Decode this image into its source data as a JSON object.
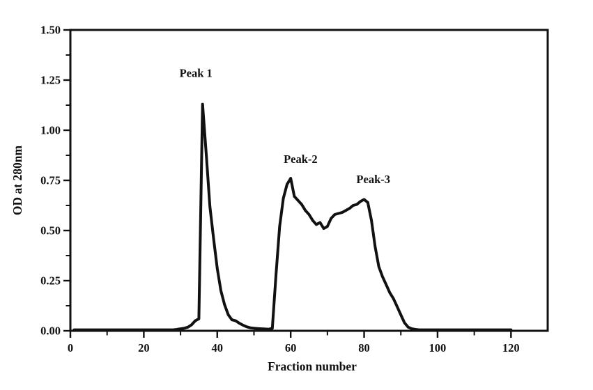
{
  "figure": {
    "background_color": "#ffffff",
    "line_color": "#111111",
    "frame_color": "#111111",
    "text_color": "#111111"
  },
  "chart_data": {
    "type": "line",
    "title": "",
    "xlabel": "Fraction number",
    "ylabel": "OD at 280nm",
    "xlim": [
      0,
      130
    ],
    "ylim": [
      0,
      1.5
    ],
    "grid": false,
    "legend": "none",
    "frame": "full-box",
    "tick_direction": "out",
    "x_tick_values": [
      0,
      20,
      40,
      60,
      80,
      100,
      120
    ],
    "x_tick_labels": [
      "0",
      "20",
      "40",
      "60",
      "80",
      "100",
      "120"
    ],
    "x_minor_ticks": [
      10,
      30,
      50,
      70,
      90,
      110
    ],
    "y_tick_values": [
      0,
      0.25,
      0.5,
      0.75,
      1.0,
      1.25,
      1.5
    ],
    "y_tick_labels": [
      "0.00",
      "0.25",
      "0.50",
      "0.75",
      "1.00",
      "1.25",
      "1.50"
    ],
    "y_minor_ticks": [
      0.125,
      0.375,
      0.625,
      0.875,
      1.125,
      1.375
    ],
    "annotations": [
      {
        "text": "Peak 1",
        "x": 34.2,
        "y": 1.285
      },
      {
        "text": "Peak-2",
        "x": 62.7,
        "y": 0.856
      },
      {
        "text": "Peak-3",
        "x": 82.5,
        "y": 0.755
      }
    ],
    "series": [
      {
        "name": "OD at 280nm",
        "marker": "square",
        "points": [
          [
            1,
            0.005
          ],
          [
            2,
            0.005
          ],
          [
            3,
            0.005
          ],
          [
            4,
            0.005
          ],
          [
            5,
            0.005
          ],
          [
            6,
            0.005
          ],
          [
            7,
            0.005
          ],
          [
            8,
            0.005
          ],
          [
            9,
            0.005
          ],
          [
            10,
            0.005
          ],
          [
            11,
            0.005
          ],
          [
            12,
            0.005
          ],
          [
            13,
            0.005
          ],
          [
            14,
            0.005
          ],
          [
            15,
            0.005
          ],
          [
            16,
            0.005
          ],
          [
            17,
            0.005
          ],
          [
            18,
            0.005
          ],
          [
            19,
            0.005
          ],
          [
            20,
            0.005
          ],
          [
            21,
            0.005
          ],
          [
            22,
            0.005
          ],
          [
            23,
            0.005
          ],
          [
            24,
            0.005
          ],
          [
            25,
            0.005
          ],
          [
            26,
            0.005
          ],
          [
            27,
            0.005
          ],
          [
            28,
            0.005
          ],
          [
            29,
            0.007
          ],
          [
            30,
            0.01
          ],
          [
            31,
            0.013
          ],
          [
            32,
            0.018
          ],
          [
            33,
            0.03
          ],
          [
            34,
            0.05
          ],
          [
            35,
            0.06
          ],
          [
            36,
            1.13
          ],
          [
            37,
            0.88
          ],
          [
            38,
            0.62
          ],
          [
            39,
            0.46
          ],
          [
            40,
            0.31
          ],
          [
            41,
            0.2
          ],
          [
            42,
            0.13
          ],
          [
            43,
            0.08
          ],
          [
            44,
            0.055
          ],
          [
            45,
            0.05
          ],
          [
            46,
            0.038
          ],
          [
            47,
            0.028
          ],
          [
            48,
            0.02
          ],
          [
            49,
            0.015
          ],
          [
            50,
            0.013
          ],
          [
            51,
            0.011
          ],
          [
            52,
            0.01
          ],
          [
            53,
            0.009
          ],
          [
            54,
            0.008
          ],
          [
            55,
            0.012
          ],
          [
            56,
            0.28
          ],
          [
            57,
            0.52
          ],
          [
            58,
            0.66
          ],
          [
            59,
            0.73
          ],
          [
            60,
            0.76
          ],
          [
            61,
            0.67
          ],
          [
            62,
            0.65
          ],
          [
            63,
            0.63
          ],
          [
            64,
            0.6
          ],
          [
            65,
            0.58
          ],
          [
            66,
            0.55
          ],
          [
            67,
            0.53
          ],
          [
            68,
            0.54
          ],
          [
            69,
            0.51
          ],
          [
            70,
            0.52
          ],
          [
            71,
            0.56
          ],
          [
            72,
            0.58
          ],
          [
            73,
            0.585
          ],
          [
            74,
            0.59
          ],
          [
            75,
            0.6
          ],
          [
            76,
            0.61
          ],
          [
            77,
            0.625
          ],
          [
            78,
            0.63
          ],
          [
            79,
            0.645
          ],
          [
            80,
            0.655
          ],
          [
            81,
            0.64
          ],
          [
            82,
            0.55
          ],
          [
            83,
            0.42
          ],
          [
            84,
            0.32
          ],
          [
            85,
            0.27
          ],
          [
            86,
            0.23
          ],
          [
            87,
            0.19
          ],
          [
            88,
            0.16
          ],
          [
            89,
            0.12
          ],
          [
            90,
            0.08
          ],
          [
            91,
            0.04
          ],
          [
            92,
            0.018
          ],
          [
            93,
            0.01
          ],
          [
            94,
            0.007
          ],
          [
            95,
            0.005
          ],
          [
            96,
            0.005
          ],
          [
            97,
            0.005
          ],
          [
            98,
            0.005
          ],
          [
            99,
            0.005
          ],
          [
            100,
            0.005
          ],
          [
            101,
            0.005
          ],
          [
            102,
            0.005
          ],
          [
            103,
            0.005
          ],
          [
            104,
            0.005
          ],
          [
            105,
            0.005
          ],
          [
            106,
            0.005
          ],
          [
            107,
            0.005
          ],
          [
            108,
            0.005
          ],
          [
            109,
            0.005
          ],
          [
            110,
            0.005
          ],
          [
            111,
            0.005
          ],
          [
            112,
            0.005
          ],
          [
            113,
            0.005
          ],
          [
            114,
            0.005
          ],
          [
            115,
            0.005
          ],
          [
            116,
            0.005
          ],
          [
            117,
            0.005
          ],
          [
            118,
            0.005
          ],
          [
            119,
            0.005
          ],
          [
            120,
            0.005
          ]
        ]
      }
    ]
  }
}
